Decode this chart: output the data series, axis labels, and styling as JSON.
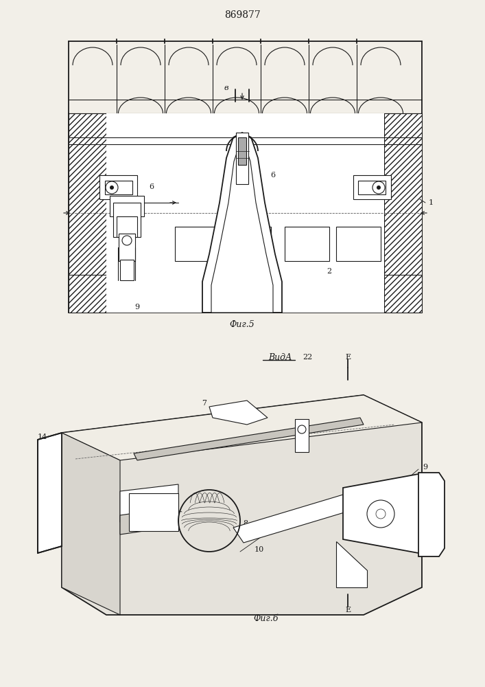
{
  "title": "869877",
  "fig5_label": "Фиг.5",
  "fig6_label": "Фиг.б",
  "background": "#f2efe8",
  "line_color": "#1a1a1a"
}
